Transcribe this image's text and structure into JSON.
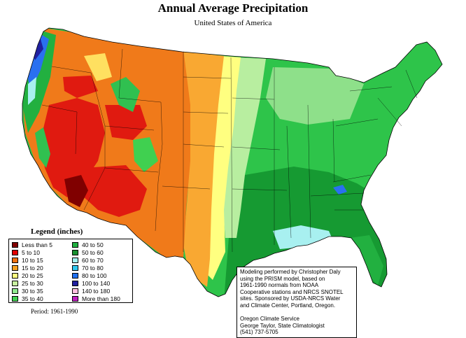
{
  "header": {
    "title": "Annual Average Precipitation",
    "subtitle": "United States of America"
  },
  "legend": {
    "title": "Legend (inches)",
    "items": [
      {
        "label": "Less than 5",
        "color": "#800000"
      },
      {
        "label": "5 to 10",
        "color": "#e00000"
      },
      {
        "label": "10 to 15",
        "color": "#f07010"
      },
      {
        "label": "15 to 20",
        "color": "#f7a020"
      },
      {
        "label": "20 to 25",
        "color": "#ffff80"
      },
      {
        "label": "25 to 30",
        "color": "#c8f0a0"
      },
      {
        "label": "30 to 35",
        "color": "#90e890"
      },
      {
        "label": "35 to 40",
        "color": "#40d050"
      },
      {
        "label": "40 to 50",
        "color": "#20b040"
      },
      {
        "label": "50 to 60",
        "color": "#189030"
      },
      {
        "label": "60 to 70",
        "color": "#a0f0f0"
      },
      {
        "label": "70 to 80",
        "color": "#30c8f0"
      },
      {
        "label": "80 to 100",
        "color": "#2070f0"
      },
      {
        "label": "100 to 140",
        "color": "#2020a0"
      },
      {
        "label": "140 to 180",
        "color": "#ffc0e0"
      },
      {
        "label": "More than 180",
        "color": "#c020c0"
      }
    ]
  },
  "period": "Period: 1961-1990",
  "credits": {
    "lines": [
      "Modeling performed by Christopher Daly",
      "using the PRISM model, based on",
      "1961-1990 normals from NOAA",
      "Cooperative stations and NRCS SNOTEL",
      "sites.  Sponsored by USDA-NRCS Water",
      "and Climate Center, Portland, Oregon."
    ],
    "org_lines": [
      "Oregon Climate Service",
      "George Taylor, State Climatologist",
      "(541) 737-5705"
    ]
  },
  "map": {
    "region": "United States of America",
    "colors": {
      "dry_red": "#e01a10",
      "very_dry": "#800000",
      "orange": "#f07a1a",
      "light_orange": "#f9a832",
      "yellow": "#ffff80",
      "pale_green": "#b8eea0",
      "light_green": "#7ee07e",
      "green": "#2ec44a",
      "mid_green": "#22b040",
      "dark_green": "#129a30",
      "cyan": "#a8f0f0",
      "blue": "#2a70f0",
      "navy": "#2020a0"
    }
  }
}
